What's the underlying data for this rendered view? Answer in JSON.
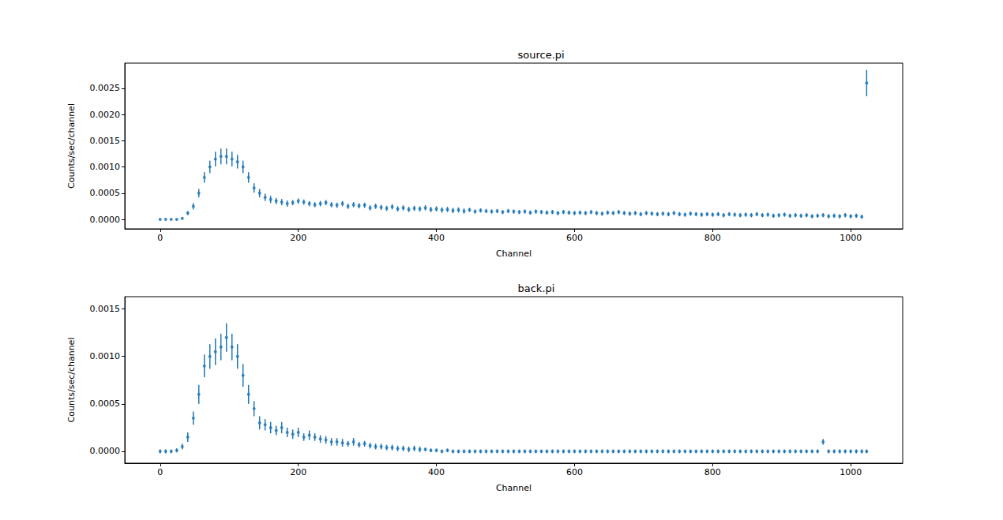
{
  "chart_data": [
    {
      "type": "scatter",
      "title": "source.pi",
      "x_label": "Channel",
      "y_label": "Counts/sec/channel",
      "color": "#1f77b4",
      "marker": "circle",
      "grid": false,
      "xlim": [
        -51.2,
        1075.2
      ],
      "xticks": [
        0,
        200,
        400,
        600,
        800,
        1000
      ],
      "ylim": [
        -0.00018,
        0.00298
      ],
      "yticks": [
        {
          "value": 0,
          "label": "0.0000"
        },
        {
          "value": 0.0005,
          "label": "0.0005"
        },
        {
          "value": 0.001,
          "label": "0.0010"
        },
        {
          "value": 0.0015,
          "label": "0.0015"
        },
        {
          "value": 0.002,
          "label": "0.0020"
        },
        {
          "value": 0.0025,
          "label": "0.0025"
        }
      ],
      "x": [
        0,
        8,
        16,
        24,
        32,
        40,
        48,
        56,
        64,
        72,
        80,
        88,
        96,
        104,
        112,
        120,
        128,
        136,
        144,
        152,
        160,
        168,
        176,
        184,
        192,
        200,
        208,
        216,
        224,
        232,
        240,
        248,
        256,
        264,
        272,
        280,
        288,
        296,
        304,
        312,
        320,
        328,
        336,
        344,
        352,
        360,
        368,
        376,
        384,
        392,
        400,
        408,
        416,
        424,
        432,
        440,
        448,
        456,
        464,
        472,
        480,
        488,
        496,
        504,
        512,
        520,
        528,
        536,
        544,
        552,
        560,
        568,
        576,
        584,
        592,
        600,
        608,
        616,
        624,
        632,
        640,
        648,
        656,
        664,
        672,
        680,
        688,
        696,
        704,
        712,
        720,
        728,
        736,
        744,
        752,
        760,
        768,
        776,
        784,
        792,
        800,
        808,
        816,
        824,
        832,
        840,
        848,
        856,
        864,
        872,
        880,
        888,
        896,
        904,
        912,
        920,
        928,
        936,
        944,
        952,
        960,
        968,
        976,
        984,
        992,
        1000,
        1008,
        1016,
        1023
      ],
      "values": [
        0,
        0,
        0,
        0,
        2e-05,
        0.00012,
        0.00025,
        0.0005,
        0.0008,
        0.001,
        0.00115,
        0.0012,
        0.0012,
        0.00115,
        0.0011,
        0.001,
        0.0008,
        0.0006,
        0.0005,
        0.00042,
        0.00038,
        0.00035,
        0.00033,
        0.0003,
        0.00032,
        0.00035,
        0.00033,
        0.0003,
        0.00028,
        0.0003,
        0.00032,
        0.00028,
        0.00027,
        0.0003,
        0.00025,
        0.00028,
        0.00026,
        0.00027,
        0.00022,
        0.00025,
        0.00023,
        0.00021,
        0.00024,
        0.0002,
        0.00022,
        0.00019,
        0.00021,
        0.0002,
        0.00022,
        0.00019,
        0.0002,
        0.00018,
        0.00019,
        0.00017,
        0.00018,
        0.00016,
        0.00018,
        0.00015,
        0.00017,
        0.00016,
        0.00015,
        0.00016,
        0.00014,
        0.00016,
        0.00015,
        0.00014,
        0.00015,
        0.00013,
        0.00015,
        0.00014,
        0.00013,
        0.00014,
        0.00012,
        0.00014,
        0.00013,
        0.00012,
        0.00013,
        0.00012,
        0.00014,
        0.00012,
        0.00011,
        0.00013,
        0.00012,
        0.00014,
        0.00012,
        0.00011,
        0.00012,
        0.0001,
        0.00012,
        0.00011,
        0.0001,
        0.00011,
        0.0001,
        0.00012,
        0.0001,
        9e-05,
        0.00011,
        0.0001,
        9e-05,
        0.0001,
        9e-05,
        0.0001,
        8e-05,
        0.0001,
        9e-05,
        8e-05,
        9e-05,
        8e-05,
        0.0001,
        8e-05,
        9e-05,
        7e-05,
        8e-05,
        9e-05,
        7e-05,
        8e-05,
        7e-05,
        8e-05,
        6e-05,
        7e-05,
        8e-05,
        6e-05,
        7e-05,
        6e-05,
        8e-05,
        6e-05,
        7e-05,
        5e-05,
        0.0026
      ],
      "errors": [
        1e-05,
        1e-05,
        1e-05,
        1e-05,
        2e-05,
        4e-05,
        6e-05,
        8e-05,
        0.0001,
        0.00012,
        0.00014,
        0.00015,
        0.00015,
        0.00014,
        0.00013,
        0.00012,
        0.0001,
        9e-05,
        8e-05,
        7e-05,
        7e-05,
        6e-05,
        6e-05,
        6e-05,
        5e-05,
        5e-05,
        5e-05,
        5e-05,
        5e-05,
        5e-05,
        5e-05,
        5e-05,
        5e-05,
        5e-05,
        5e-05,
        5e-05,
        5e-05,
        5e-05,
        5e-05,
        5e-05,
        5e-05,
        5e-05,
        5e-05,
        5e-05,
        5e-05,
        5e-05,
        5e-05,
        5e-05,
        5e-05,
        5e-05,
        5e-05,
        5e-05,
        5e-05,
        5e-05,
        5e-05,
        5e-05,
        4e-05,
        4e-05,
        4e-05,
        4e-05,
        4e-05,
        4e-05,
        4e-05,
        4e-05,
        4e-05,
        4e-05,
        4e-05,
        4e-05,
        4e-05,
        4e-05,
        4e-05,
        4e-05,
        4e-05,
        4e-05,
        4e-05,
        4e-05,
        4e-05,
        4e-05,
        4e-05,
        4e-05,
        4e-05,
        4e-05,
        4e-05,
        4e-05,
        4e-05,
        4e-05,
        4e-05,
        4e-05,
        4e-05,
        4e-05,
        4e-05,
        4e-05,
        4e-05,
        4e-05,
        4e-05,
        4e-05,
        4e-05,
        4e-05,
        4e-05,
        4e-05,
        4e-05,
        4e-05,
        4e-05,
        4e-05,
        4e-05,
        4e-05,
        4e-05,
        4e-05,
        4e-05,
        4e-05,
        4e-05,
        4e-05,
        4e-05,
        4e-05,
        4e-05,
        4e-05,
        4e-05,
        4e-05,
        4e-05,
        4e-05,
        4e-05,
        4e-05,
        4e-05,
        4e-05,
        4e-05,
        4e-05,
        4e-05,
        4e-05,
        0.00025
      ]
    },
    {
      "type": "scatter",
      "title": "back.pi",
      "x_label": "Channel",
      "y_label": "Counts/sec/channel",
      "color": "#1f77b4",
      "marker": "circle",
      "grid": false,
      "xlim": [
        -51.2,
        1075.2
      ],
      "xticks": [
        0,
        200,
        400,
        600,
        800,
        1000
      ],
      "ylim": [
        -0.000125,
        0.00163
      ],
      "yticks": [
        {
          "value": 0,
          "label": "0.0000"
        },
        {
          "value": 0.0005,
          "label": "0.0005"
        },
        {
          "value": 0.001,
          "label": "0.0010"
        },
        {
          "value": 0.0015,
          "label": "0.0015"
        }
      ],
      "x": [
        0,
        8,
        16,
        24,
        32,
        40,
        48,
        56,
        64,
        72,
        80,
        88,
        96,
        104,
        112,
        120,
        128,
        136,
        144,
        152,
        160,
        168,
        176,
        184,
        192,
        200,
        208,
        216,
        224,
        232,
        240,
        248,
        256,
        264,
        272,
        280,
        288,
        296,
        304,
        312,
        320,
        328,
        336,
        344,
        352,
        360,
        368,
        376,
        384,
        392,
        400,
        408,
        416,
        424,
        432,
        440,
        448,
        456,
        464,
        472,
        480,
        488,
        496,
        504,
        512,
        520,
        528,
        536,
        544,
        552,
        560,
        568,
        576,
        584,
        592,
        600,
        608,
        616,
        624,
        632,
        640,
        648,
        656,
        664,
        672,
        680,
        688,
        696,
        704,
        712,
        720,
        728,
        736,
        744,
        752,
        760,
        768,
        776,
        784,
        792,
        800,
        808,
        816,
        824,
        832,
        840,
        848,
        856,
        864,
        872,
        880,
        888,
        896,
        904,
        912,
        920,
        928,
        936,
        944,
        952,
        960,
        968,
        976,
        984,
        992,
        1000,
        1008,
        1016,
        1023
      ],
      "values": [
        0,
        0,
        0,
        1e-05,
        5e-05,
        0.00015,
        0.00035,
        0.0006,
        0.0009,
        0.001,
        0.00105,
        0.0011,
        0.0012,
        0.0011,
        0.001,
        0.0008,
        0.0006,
        0.00045,
        0.0003,
        0.00028,
        0.00025,
        0.00022,
        0.00025,
        0.0002,
        0.00018,
        0.0002,
        0.00015,
        0.00017,
        0.00015,
        0.00013,
        0.00012,
        0.0001,
        0.0001,
        9e-05,
        8e-05,
        0.0001,
        7e-05,
        8e-05,
        6e-05,
        5e-05,
        5e-05,
        4e-05,
        4e-05,
        3e-05,
        3e-05,
        2e-05,
        3e-05,
        2e-05,
        2e-05,
        1e-05,
        1e-05,
        0,
        1e-05,
        0,
        0,
        0,
        0,
        0,
        0,
        0,
        0,
        0,
        0,
        0,
        0,
        0,
        0,
        0,
        0,
        0,
        0,
        0,
        0,
        0,
        0,
        0,
        0,
        0,
        0,
        0,
        0,
        0,
        0,
        0,
        0,
        0,
        0,
        0,
        0,
        0,
        0,
        0,
        0,
        0,
        0,
        0,
        0,
        0,
        0,
        0,
        0,
        0,
        0,
        0,
        0,
        0,
        0,
        0,
        0,
        0,
        0,
        0,
        0,
        0,
        0,
        0,
        0,
        0,
        0,
        0,
        0.0001,
        0,
        0,
        0,
        0,
        0,
        0,
        0,
        0
      ],
      "errors": [
        2e-05,
        2e-05,
        2e-05,
        2e-05,
        3e-05,
        5e-05,
        7e-05,
        0.0001,
        0.00012,
        0.00013,
        0.00014,
        0.00014,
        0.00015,
        0.00014,
        0.00013,
        0.00012,
        0.0001,
        8e-05,
        7e-05,
        6e-05,
        6e-05,
        5e-05,
        6e-05,
        5e-05,
        5e-05,
        5e-05,
        4e-05,
        5e-05,
        4e-05,
        4e-05,
        4e-05,
        4e-05,
        4e-05,
        4e-05,
        3e-05,
        4e-05,
        3e-05,
        3e-05,
        3e-05,
        3e-05,
        3e-05,
        3e-05,
        3e-05,
        3e-05,
        3e-05,
        3e-05,
        3e-05,
        3e-05,
        2e-05,
        2e-05,
        2e-05,
        2e-05,
        2e-05,
        2e-05,
        2e-05,
        2e-05,
        2e-05,
        2e-05,
        2e-05,
        2e-05,
        2e-05,
        2e-05,
        2e-05,
        2e-05,
        2e-05,
        2e-05,
        2e-05,
        2e-05,
        2e-05,
        2e-05,
        2e-05,
        2e-05,
        2e-05,
        2e-05,
        2e-05,
        2e-05,
        2e-05,
        2e-05,
        2e-05,
        2e-05,
        2e-05,
        2e-05,
        2e-05,
        2e-05,
        2e-05,
        2e-05,
        2e-05,
        2e-05,
        2e-05,
        2e-05,
        2e-05,
        2e-05,
        2e-05,
        2e-05,
        2e-05,
        2e-05,
        2e-05,
        2e-05,
        2e-05,
        2e-05,
        2e-05,
        2e-05,
        2e-05,
        2e-05,
        2e-05,
        2e-05,
        2e-05,
        2e-05,
        2e-05,
        2e-05,
        2e-05,
        2e-05,
        2e-05,
        2e-05,
        2e-05,
        2e-05,
        2e-05,
        2e-05,
        2e-05,
        2e-05,
        3e-05,
        2e-05,
        2e-05,
        2e-05,
        2e-05,
        2e-05,
        2e-05,
        2e-05,
        2e-05
      ]
    }
  ]
}
